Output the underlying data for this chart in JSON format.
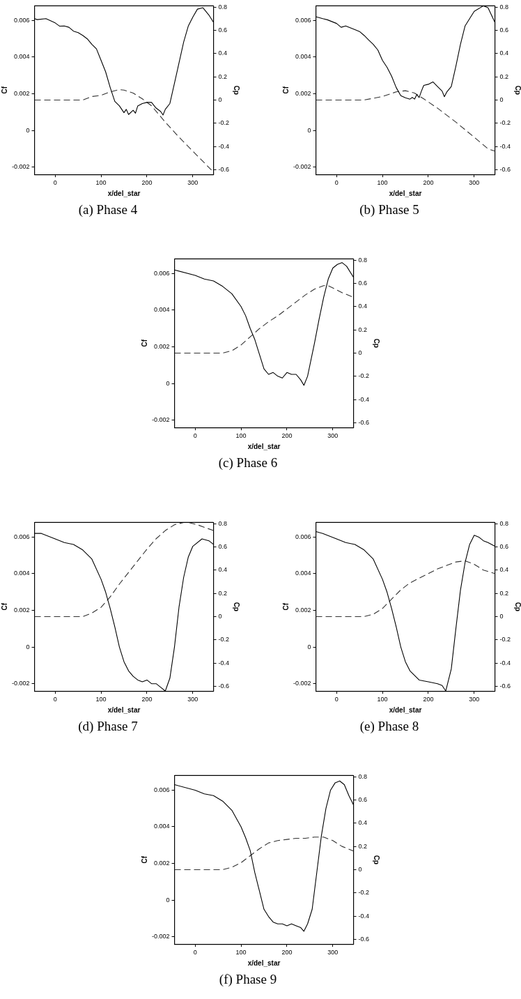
{
  "chart_data": [
    {
      "type": "line",
      "title": "(a) Phase 4",
      "xlabel": "x/del_star",
      "ylabel": "Cf",
      "y2label": "Cp",
      "marker": "none",
      "xlim": [
        -45,
        345
      ],
      "xticks": [
        0,
        100,
        200,
        300
      ],
      "ylim": [
        -0.0024,
        0.0068
      ],
      "yticks": [
        -0.002,
        0,
        0.002,
        0.004,
        0.006
      ],
      "y2lim": [
        -0.64,
        0.81
      ],
      "y2ticks": [
        -0.6,
        -0.4,
        -0.2,
        0,
        0.2,
        0.4,
        0.6,
        0.8
      ],
      "series": [
        {
          "color": "#000000",
          "line_style": "solid",
          "x": [
            -45,
            -39,
            -20,
            0,
            10,
            20,
            30,
            40,
            50,
            60,
            70,
            80,
            90,
            100,
            110,
            120,
            130,
            140,
            150,
            155,
            160,
            170,
            175,
            180,
            190,
            200,
            210,
            220,
            230,
            235,
            240,
            250,
            260,
            270,
            280,
            290,
            300,
            310,
            322,
            335,
            345
          ],
          "values": [
            0.0061,
            0.00605,
            0.0061,
            0.00587,
            0.00569,
            0.0057,
            0.00563,
            0.00542,
            0.00534,
            0.00519,
            0.005,
            0.0047,
            0.00445,
            0.00383,
            0.0032,
            0.00234,
            0.00159,
            0.00134,
            0.00097,
            0.00115,
            0.00087,
            0.0011,
            0.00094,
            0.00134,
            0.00147,
            0.00153,
            0.00153,
            0.00122,
            0.00103,
            0.00084,
            0.00115,
            0.00147,
            0.00258,
            0.0037,
            0.00482,
            0.00569,
            0.00619,
            0.00662,
            0.0067,
            0.0063,
            0.0059
          ]
        },
        {
          "color": "#333333",
          "line_style": "dashed",
          "axis": "y2",
          "x": [
            -45,
            0,
            40,
            60,
            80,
            100,
            120,
            140,
            150,
            170,
            190,
            210,
            240,
            270,
            300,
            320,
            345
          ],
          "values": [
            0,
            0,
            0,
            0,
            0.03,
            0.04,
            0.07,
            0.09,
            0.085,
            0.06,
            0.01,
            -0.05,
            -0.19,
            -0.32,
            -0.44,
            -0.52,
            -0.62
          ]
        }
      ]
    },
    {
      "type": "line",
      "title": "(b) Phase 5",
      "xlabel": "x/del_star",
      "ylabel": "Cf",
      "y2label": "Cp",
      "marker": "none",
      "xlim": [
        -45,
        345
      ],
      "xticks": [
        0,
        100,
        200,
        300
      ],
      "ylim": [
        -0.0024,
        0.0068
      ],
      "yticks": [
        -0.002,
        0,
        0.002,
        0.004,
        0.006
      ],
      "y2lim": [
        -0.64,
        0.81
      ],
      "y2ticks": [
        -0.6,
        -0.4,
        -0.2,
        0,
        0.2,
        0.4,
        0.6,
        0.8
      ],
      "series": [
        {
          "color": "#000000",
          "line_style": "solid",
          "x": [
            -45,
            -30,
            -20,
            0,
            10,
            20,
            40,
            50,
            60,
            70,
            80,
            90,
            100,
            110,
            120,
            130,
            140,
            150,
            160,
            165,
            170,
            175,
            180,
            185,
            190,
            200,
            210,
            220,
            230,
            235,
            240,
            250,
            260,
            270,
            280,
            300,
            320,
            330,
            345
          ],
          "values": [
            0.00621,
            0.0061,
            0.00604,
            0.00584,
            0.00563,
            0.0057,
            0.0055,
            0.0054,
            0.00519,
            0.00494,
            0.0047,
            0.00439,
            0.00383,
            0.00345,
            0.00296,
            0.00234,
            0.0019,
            0.00178,
            0.00171,
            0.0018,
            0.00171,
            0.00196,
            0.0018,
            0.00215,
            0.00246,
            0.00252,
            0.00265,
            0.0024,
            0.00215,
            0.00184,
            0.00209,
            0.0024,
            0.0035,
            0.0047,
            0.0057,
            0.0065,
            0.0068,
            0.0067,
            0.0059
          ]
        },
        {
          "color": "#333333",
          "line_style": "dashed",
          "axis": "y2",
          "x": [
            -45,
            0,
            40,
            60,
            100,
            130,
            150,
            170,
            190,
            220,
            260,
            300,
            330,
            345
          ],
          "values": [
            0,
            0,
            0,
            0,
            0.03,
            0.07,
            0.08,
            0.06,
            0.01,
            -0.07,
            -0.19,
            -0.32,
            -0.42,
            -0.44
          ]
        }
      ]
    },
    {
      "type": "line",
      "title": "(c) Phase 6",
      "xlabel": "x/del_star",
      "ylabel": "Cf",
      "y2label": "Cp",
      "marker": "none",
      "xlim": [
        -45,
        345
      ],
      "xticks": [
        0,
        100,
        200,
        300
      ],
      "ylim": [
        -0.0024,
        0.0068
      ],
      "yticks": [
        -0.002,
        0,
        0.002,
        0.004,
        0.006
      ],
      "y2lim": [
        -0.64,
        0.81
      ],
      "y2ticks": [
        -0.6,
        -0.4,
        -0.2,
        0,
        0.2,
        0.4,
        0.6,
        0.8
      ],
      "series": [
        {
          "color": "#000000",
          "line_style": "solid",
          "x": [
            -45,
            0,
            20,
            40,
            60,
            80,
            100,
            110,
            120,
            130,
            140,
            150,
            160,
            170,
            180,
            190,
            200,
            210,
            220,
            230,
            237,
            245,
            260,
            270,
            280,
            290,
            300,
            310,
            320,
            330,
            345
          ],
          "values": [
            0.0062,
            0.0059,
            0.0057,
            0.0056,
            0.0053,
            0.0049,
            0.0042,
            0.0037,
            0.003,
            0.0024,
            0.0016,
            0.0008,
            0.0005,
            0.0006,
            0.0004,
            0.0003,
            0.0006,
            0.0005,
            0.0005,
            0.0002,
            -0.0001,
            0.0004,
            0.0022,
            0.0035,
            0.0047,
            0.0057,
            0.0063,
            0.0065,
            0.0066,
            0.0064,
            0.0058
          ]
        },
        {
          "color": "#333333",
          "line_style": "dashed",
          "axis": "y2",
          "x": [
            -45,
            0,
            40,
            60,
            80,
            100,
            120,
            140,
            160,
            180,
            200,
            220,
            240,
            260,
            280,
            290,
            300,
            320,
            345
          ],
          "values": [
            0,
            0,
            0,
            0,
            0.02,
            0.07,
            0.14,
            0.21,
            0.27,
            0.32,
            0.38,
            0.44,
            0.5,
            0.55,
            0.58,
            0.58,
            0.56,
            0.52,
            0.48
          ]
        }
      ]
    },
    {
      "type": "line",
      "title": "(d) Phase 7",
      "xlabel": "x/del_star",
      "ylabel": "Cf",
      "y2label": "Cp",
      "marker": "none",
      "xlim": [
        -45,
        345
      ],
      "xticks": [
        0,
        100,
        200,
        300
      ],
      "ylim": [
        -0.0024,
        0.0068
      ],
      "yticks": [
        -0.002,
        0,
        0.002,
        0.004,
        0.006
      ],
      "y2lim": [
        -0.64,
        0.81
      ],
      "y2ticks": [
        -0.6,
        -0.4,
        -0.2,
        0,
        0.2,
        0.4,
        0.6,
        0.8
      ],
      "series": [
        {
          "color": "#000000",
          "line_style": "solid",
          "x": [
            -45,
            -30,
            0,
            20,
            40,
            60,
            80,
            100,
            110,
            120,
            130,
            140,
            150,
            160,
            170,
            180,
            190,
            200,
            210,
            220,
            230,
            240,
            250,
            260,
            270,
            280,
            290,
            300,
            320,
            335,
            345
          ],
          "values": [
            0.0062,
            0.0062,
            0.0059,
            0.0057,
            0.0056,
            0.0053,
            0.0048,
            0.0037,
            0.003,
            0.0021,
            0.0011,
            0,
            -0.0008,
            -0.0013,
            -0.0016,
            -0.0018,
            -0.0019,
            -0.0018,
            -0.002,
            -0.002,
            -0.0022,
            -0.0024,
            -0.0017,
            0,
            0.0022,
            0.0038,
            0.0049,
            0.0055,
            0.0059,
            0.0058,
            0.0056
          ]
        },
        {
          "color": "#333333",
          "line_style": "dashed",
          "axis": "y2",
          "x": [
            -45,
            0,
            40,
            60,
            80,
            100,
            120,
            140,
            160,
            180,
            200,
            220,
            240,
            260,
            280,
            290,
            310,
            345
          ],
          "values": [
            0,
            0,
            0,
            0,
            0.03,
            0.08,
            0.17,
            0.28,
            0.38,
            0.48,
            0.58,
            0.67,
            0.74,
            0.79,
            0.81,
            0.81,
            0.79,
            0.74
          ]
        }
      ]
    },
    {
      "type": "line",
      "title": "(e) Phase 8",
      "xlabel": "x/del_star",
      "ylabel": "Cf",
      "y2label": "Cp",
      "marker": "none",
      "xlim": [
        -45,
        345
      ],
      "xticks": [
        0,
        100,
        200,
        300
      ],
      "ylim": [
        -0.0024,
        0.0068
      ],
      "yticks": [
        -0.002,
        0,
        0.002,
        0.004,
        0.006
      ],
      "y2lim": [
        -0.64,
        0.81
      ],
      "y2ticks": [
        -0.6,
        -0.4,
        -0.2,
        0,
        0.2,
        0.4,
        0.6,
        0.8
      ],
      "series": [
        {
          "color": "#000000",
          "line_style": "solid",
          "x": [
            -45,
            -30,
            0,
            20,
            40,
            60,
            80,
            100,
            110,
            120,
            130,
            140,
            150,
            160,
            180,
            200,
            220,
            230,
            238,
            250,
            260,
            270,
            280,
            290,
            300,
            310,
            320,
            330,
            345
          ],
          "values": [
            0.0063,
            0.0062,
            0.0059,
            0.0057,
            0.0056,
            0.0053,
            0.0048,
            0.0037,
            0.003,
            0.0021,
            0.0011,
            0,
            -0.0008,
            -0.0013,
            -0.0018,
            -0.0019,
            -0.002,
            -0.0021,
            -0.0024,
            -0.0012,
            0.001,
            0.0031,
            0.0046,
            0.0056,
            0.0061,
            0.006,
            0.0058,
            0.0057,
            0.0055
          ]
        },
        {
          "color": "#333333",
          "line_style": "dashed",
          "axis": "y2",
          "x": [
            -45,
            0,
            40,
            60,
            80,
            100,
            120,
            140,
            160,
            180,
            200,
            220,
            240,
            260,
            280,
            300,
            320,
            345
          ],
          "values": [
            0,
            0,
            0,
            0,
            0.02,
            0.07,
            0.15,
            0.23,
            0.29,
            0.33,
            0.37,
            0.41,
            0.44,
            0.47,
            0.48,
            0.45,
            0.4,
            0.37
          ]
        }
      ]
    },
    {
      "type": "line",
      "title": "(f) Phase 9",
      "xlabel": "x/del_star",
      "ylabel": "Cf",
      "y2label": "Cp",
      "marker": "none",
      "xlim": [
        -45,
        345
      ],
      "xticks": [
        0,
        100,
        200,
        300
      ],
      "ylim": [
        -0.0024,
        0.0068
      ],
      "yticks": [
        -0.002,
        0,
        0.002,
        0.004,
        0.006
      ],
      "y2lim": [
        -0.64,
        0.81
      ],
      "y2ticks": [
        -0.6,
        -0.4,
        -0.2,
        0,
        0.2,
        0.4,
        0.6,
        0.8
      ],
      "series": [
        {
          "color": "#000000",
          "line_style": "solid",
          "x": [
            -45,
            0,
            20,
            40,
            60,
            80,
            100,
            110,
            120,
            130,
            140,
            150,
            160,
            170,
            180,
            190,
            200,
            210,
            220,
            230,
            237,
            245,
            255,
            265,
            275,
            285,
            295,
            305,
            315,
            325,
            335,
            345
          ],
          "values": [
            0.0063,
            0.006,
            0.0058,
            0.0057,
            0.0054,
            0.0049,
            0.004,
            0.0034,
            0.0027,
            0.0015,
            0.0005,
            -0.0005,
            -0.0009,
            -0.0012,
            -0.0013,
            -0.0013,
            -0.0014,
            -0.0013,
            -0.0014,
            -0.0015,
            -0.0017,
            -0.0013,
            -0.0005,
            0.0015,
            0.0035,
            0.005,
            0.006,
            0.0064,
            0.0065,
            0.0063,
            0.0057,
            0.0052
          ]
        },
        {
          "color": "#333333",
          "line_style": "dashed",
          "axis": "y2",
          "x": [
            -45,
            0,
            40,
            60,
            80,
            100,
            120,
            140,
            160,
            180,
            200,
            220,
            240,
            260,
            280,
            300,
            320,
            345
          ],
          "values": [
            0,
            0,
            0,
            0,
            0.02,
            0.06,
            0.12,
            0.18,
            0.23,
            0.25,
            0.26,
            0.27,
            0.27,
            0.28,
            0.28,
            0.25,
            0.2,
            0.16
          ]
        }
      ]
    }
  ]
}
